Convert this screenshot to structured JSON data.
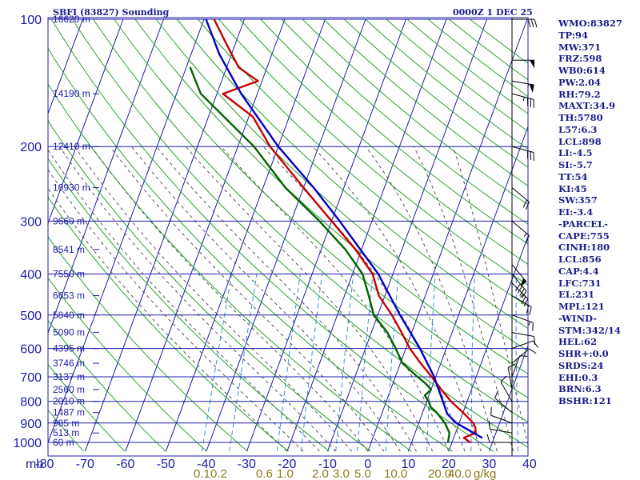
{
  "header": {
    "station_title": "SBFI (83827) Sounding",
    "valid_time": "0000Z  1 DEC 25"
  },
  "chart_data": {
    "type": "line",
    "diagram": "Skew-T log-P",
    "pressure_axis": {
      "levels": [
        1000,
        900,
        800,
        700,
        600,
        500,
        400,
        300,
        200,
        100
      ],
      "labels": [
        "1000",
        "900",
        "800",
        "700",
        "600",
        "500",
        "400",
        "300",
        "200",
        "100"
      ],
      "unit_label": "mb",
      "range": [
        1050,
        100
      ]
    },
    "temperature_axis": {
      "ticks": [
        -80,
        -70,
        -60,
        -50,
        -40,
        -30,
        -20,
        -10,
        0,
        10,
        20,
        30,
        40
      ],
      "labels": [
        "-80",
        "-70",
        "-60",
        "-50",
        "-40",
        "-30",
        "-20",
        "-10",
        "0",
        "10",
        "20",
        "30",
        "40"
      ]
    },
    "mixing_ratio_labels": [
      {
        "label": "0.1",
        "value": 0.1
      },
      {
        "label": "0.2",
        "value": 0.2
      },
      {
        "label": "0.6",
        "value": 0.6
      },
      {
        "label": "1.0",
        "value": 1.0
      },
      {
        "label": "2.0",
        "value": 2.0
      },
      {
        "label": "3.0",
        "value": 3.0
      },
      {
        "label": "5.0",
        "value": 5.0
      },
      {
        "label": "10.0",
        "value": 10.0
      },
      {
        "label": "20.0",
        "value": 20.0
      },
      {
        "label": "40.0",
        "value": 40.0
      },
      {
        "label": "g/kg",
        "value": null
      }
    ],
    "height_labels": [
      {
        "p": 1000,
        "label": "60 m"
      },
      {
        "p": 950,
        "label": "513 m"
      },
      {
        "p": 900,
        "label": "985 m"
      },
      {
        "p": 850,
        "label": "1487 m"
      },
      {
        "p": 800,
        "label": "2010 m"
      },
      {
        "p": 750,
        "label": "2560 m"
      },
      {
        "p": 700,
        "label": "3137 m"
      },
      {
        "p": 650,
        "label": "3746 m"
      },
      {
        "p": 600,
        "label": "4395 m"
      },
      {
        "p": 550,
        "label": "5090 m"
      },
      {
        "p": 500,
        "label": "5840 m"
      },
      {
        "p": 450,
        "label": "6653 m"
      },
      {
        "p": 400,
        "label": "7550 m"
      },
      {
        "p": 350,
        "label": "8541 m"
      },
      {
        "p": 300,
        "label": "9660 m"
      },
      {
        "p": 250,
        "label": "10930 m"
      },
      {
        "p": 200,
        "label": "12410 m"
      },
      {
        "p": 150,
        "label": "14190 m"
      },
      {
        "p": 100,
        "label": "16620 m"
      }
    ],
    "series": [
      {
        "key": "temperature",
        "color": "#c80000",
        "points": [
          [
            1000,
            24.5
          ],
          [
            975,
            22.5
          ],
          [
            950,
            25.0
          ],
          [
            925,
            24.5
          ],
          [
            900,
            23.5
          ],
          [
            850,
            20.0
          ],
          [
            800,
            16.0
          ],
          [
            750,
            12.5
          ],
          [
            700,
            9.0
          ],
          [
            650,
            5.0
          ],
          [
            600,
            1.0
          ],
          [
            550,
            -2.5
          ],
          [
            500,
            -6.5
          ],
          [
            450,
            -11.5
          ],
          [
            400,
            -15.0
          ],
          [
            350,
            -21.5
          ],
          [
            300,
            -30.0
          ],
          [
            250,
            -40.0
          ],
          [
            200,
            -52.0
          ],
          [
            170,
            -59.0
          ],
          [
            150,
            -68.5
          ],
          [
            140,
            -61.0
          ],
          [
            130,
            -67.0
          ],
          [
            115,
            -72.0
          ],
          [
            100,
            -77.5
          ]
        ]
      },
      {
        "key": "dewpoint",
        "color": "#006400",
        "points": [
          [
            1000,
            19.0
          ],
          [
            950,
            18.5
          ],
          [
            900,
            16.5
          ],
          [
            850,
            13.5
          ],
          [
            825,
            11.5
          ],
          [
            800,
            10.5
          ],
          [
            775,
            9.0
          ],
          [
            750,
            10.0
          ],
          [
            725,
            8.0
          ],
          [
            700,
            5.5
          ],
          [
            650,
            0.5
          ],
          [
            600,
            -2.5
          ],
          [
            550,
            -6.0
          ],
          [
            500,
            -11.0
          ],
          [
            450,
            -14.0
          ],
          [
            400,
            -17.5
          ],
          [
            350,
            -24.0
          ],
          [
            300,
            -33.0
          ],
          [
            250,
            -44.5
          ],
          [
            200,
            -56.0
          ],
          [
            150,
            -74.0
          ],
          [
            130,
            -79.0
          ]
        ]
      },
      {
        "key": "parcel",
        "color": "#0000c8",
        "points": [
          [
            975,
            27.0
          ],
          [
            900,
            19.3
          ],
          [
            856,
            16.2
          ],
          [
            800,
            14.0
          ],
          [
            700,
            9.6
          ],
          [
            600,
            3.5
          ],
          [
            500,
            -4.5
          ],
          [
            400,
            -13.6
          ],
          [
            300,
            -28.0
          ],
          [
            250,
            -37.5
          ],
          [
            200,
            -50.0
          ],
          [
            150,
            -64.0
          ],
          [
            121,
            -73.0
          ],
          [
            100,
            -79.5
          ]
        ]
      }
    ],
    "wind_barbs": [
      {
        "p": 100,
        "dir": 270,
        "spd": 30
      },
      {
        "p": 125,
        "dir": 270,
        "spd": 50
      },
      {
        "p": 140,
        "dir": 280,
        "spd": 55
      },
      {
        "p": 150,
        "dir": 285,
        "spd": 35
      },
      {
        "p": 200,
        "dir": 285,
        "spd": 30
      },
      {
        "p": 250,
        "dir": 310,
        "spd": 20
      },
      {
        "p": 300,
        "dir": 310,
        "spd": 15
      },
      {
        "p": 380,
        "dir": 320,
        "spd": 50
      },
      {
        "p": 400,
        "dir": 320,
        "spd": 40
      },
      {
        "p": 420,
        "dir": 315,
        "spd": 25
      },
      {
        "p": 450,
        "dir": 300,
        "spd": 20
      },
      {
        "p": 500,
        "dir": 290,
        "spd": 15
      },
      {
        "p": 550,
        "dir": 280,
        "spd": 10
      },
      {
        "p": 600,
        "dir": 250,
        "spd": 10
      },
      {
        "p": 650,
        "dir": 230,
        "spd": 10
      },
      {
        "p": 700,
        "dir": 200,
        "spd": 10
      },
      {
        "p": 750,
        "dir": 170,
        "spd": 10
      },
      {
        "p": 800,
        "dir": 150,
        "spd": 10
      },
      {
        "p": 850,
        "dir": 130,
        "spd": 10
      },
      {
        "p": 900,
        "dir": 110,
        "spd": 10
      },
      {
        "p": 950,
        "dir": 100,
        "spd": 10
      },
      {
        "p": 1000,
        "dir": 90,
        "spd": 10
      }
    ],
    "grid": true
  },
  "indices": [
    "WMO:83827",
    "TP:94",
    "MW:371",
    "FRZ:598",
    "WB0:614",
    "PW:2.04",
    "RH:79.2",
    "MAXT:34.9",
    "TH:5780",
    "L57:6.3",
    "LCL:898",
    "LI:-4.5",
    "SI:-5.7",
    "TT:54",
    "KI:45",
    "SW:357",
    "EI:-3.4",
    "-PARCEL-",
    "CAPE:755",
    "CINH:180",
    "LCL:856",
    "CAP:4.4",
    "LFC:731",
    "EL:231",
    "MPL:121",
    "-WIND-",
    "STM:342/14",
    "HEL:62",
    "SHR+:0.0",
    "SRDS:24",
    "EHI:0.3",
    "BRN:6.3",
    "BSHR:121"
  ],
  "colors": {
    "grid_line": "#1c1ca8",
    "dry_adiabat": "#2aa02a",
    "moist_adiabat": "#555555",
    "mixing_ratio": "#3a8fd8",
    "temperature": "#c80000",
    "dewpoint": "#006400",
    "parcel": "#0000c8"
  }
}
